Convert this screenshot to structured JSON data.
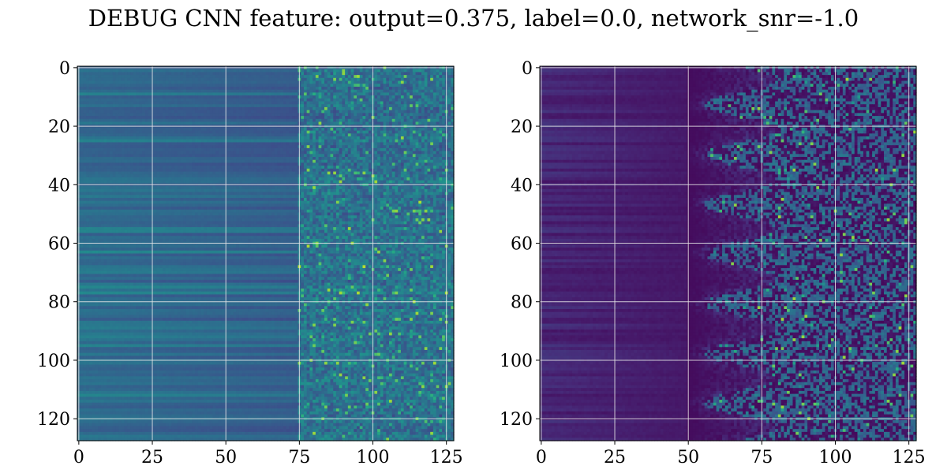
{
  "chart_data": [
    {
      "type": "heatmap",
      "title": "DEBUG CNN feature: output=0.375, label=0.0, network_snr=-1.0",
      "xlabel": "",
      "ylabel": "",
      "xlim": [
        0,
        127
      ],
      "ylim": [
        127,
        0
      ],
      "xticks": [
        "0",
        "25",
        "50",
        "75",
        "100",
        "125"
      ],
      "yticks": [
        "0",
        "20",
        "40",
        "60",
        "80",
        "100",
        "120"
      ],
      "grid": true,
      "colormap": "viridis",
      "shape": [
        128,
        128
      ],
      "description_values": {
        "left_panel": "smooth moderate values for columns 0-75, noisy higher values for columns 75-127",
        "right_panel": "low values for columns 0-50, sparse noisy bright values for columns 60-127"
      }
    },
    {
      "type": "heatmap",
      "title": "",
      "xlabel": "",
      "ylabel": "",
      "xlim": [
        0,
        127
      ],
      "ylim": [
        127,
        0
      ],
      "xticks": [
        "0",
        "25",
        "50",
        "75",
        "100",
        "125"
      ],
      "yticks": [
        "0",
        "20",
        "40",
        "60",
        "80",
        "100",
        "120"
      ],
      "grid": true,
      "colormap": "viridis",
      "shape": [
        128,
        128
      ]
    }
  ],
  "figure": {
    "title": "DEBUG CNN feature: output=0.375, label=0.0, network_snr=-1.0"
  },
  "colors": {
    "viridis_low": "#440154",
    "viridis_mid": "#21918c",
    "viridis_high": "#fde725",
    "grid": "#e8e8e8"
  }
}
